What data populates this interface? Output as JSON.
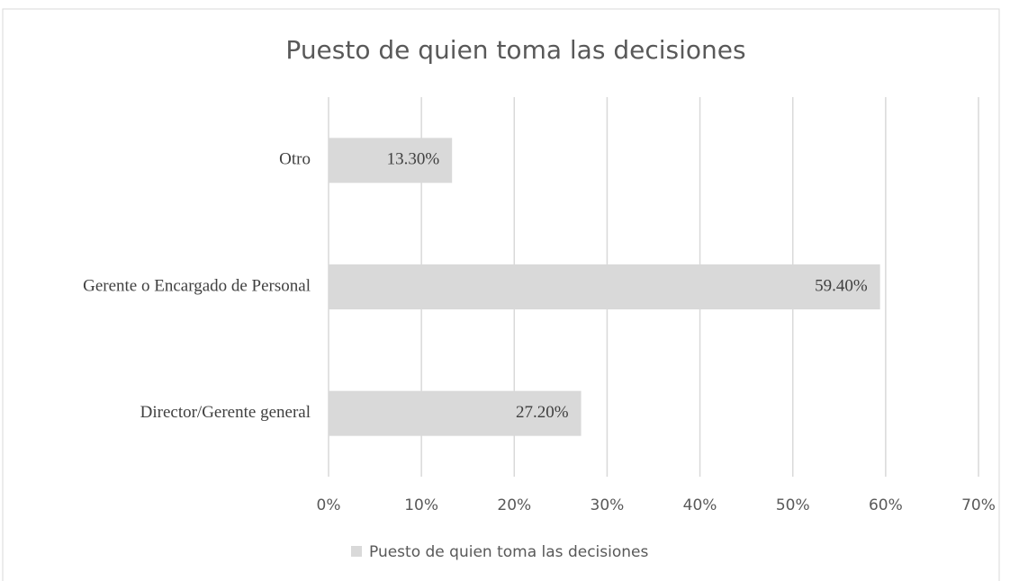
{
  "chart_data": {
    "type": "bar",
    "orientation": "horizontal",
    "title": "Puesto de quien toma las decisiones",
    "categories": [
      "Otro",
      "Gerente o Encargado de Personal",
      "Director/Gerente general"
    ],
    "series": [
      {
        "name": "Puesto de quien toma las decisiones",
        "color": "#d9d9d9",
        "values": [
          13.3,
          59.4,
          27.2
        ],
        "value_labels": [
          "13.30%",
          "59.40%",
          "27.20%"
        ]
      }
    ],
    "xlim": [
      0,
      70
    ],
    "xticks": [
      {
        "value": 0,
        "label": "0%"
      },
      {
        "value": 10,
        "label": "10%"
      },
      {
        "value": 20,
        "label": "20%"
      },
      {
        "value": 30,
        "label": "30%"
      },
      {
        "value": 40,
        "label": "40%"
      },
      {
        "value": 50,
        "label": "50%"
      },
      {
        "value": 60,
        "label": "60%"
      },
      {
        "value": 70,
        "label": "70%"
      }
    ],
    "grid": true,
    "legend": "bottom"
  }
}
